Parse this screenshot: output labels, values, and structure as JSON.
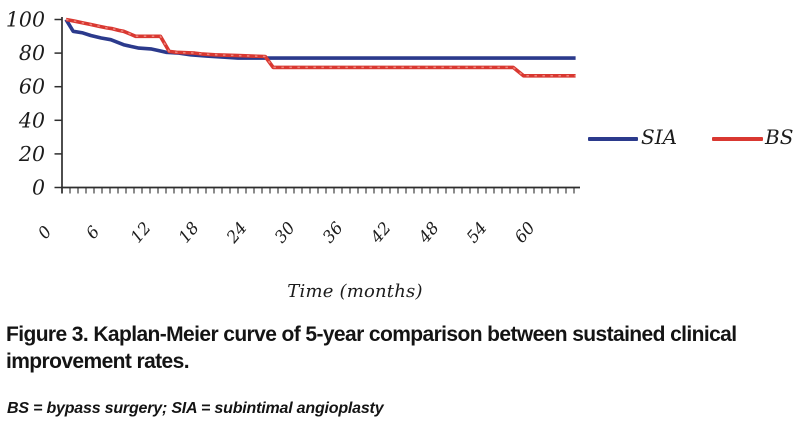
{
  "figure": {
    "caption": "Figure 3. Kaplan-Meier curve of 5-year comparison between sustained clinical improvement rates.",
    "footnote": "BS = bypass surgery; SIA = subintimal angioplasty"
  },
  "chart_data": {
    "type": "line",
    "subtype": "kaplan-meier",
    "title": "",
    "xlabel": "Time (months)",
    "ylabel": "",
    "xlim": [
      0,
      64.5
    ],
    "ylim": [
      0,
      100
    ],
    "xticks": [
      0,
      6,
      12,
      18,
      24,
      30,
      36,
      42,
      48,
      54,
      60
    ],
    "yticks": [
      0,
      20,
      40,
      60,
      80,
      100
    ],
    "grid": false,
    "legend_position": "right",
    "axis_color": "#2e2e2e",
    "series": [
      {
        "name": "SIA",
        "color": "#2b3a8c",
        "marker_color": null,
        "points": [
          [
            0.5,
            100
          ],
          [
            1.4,
            93
          ],
          [
            2.6,
            92
          ],
          [
            3.6,
            90.5
          ],
          [
            4.9,
            89
          ],
          [
            6.1,
            88
          ],
          [
            6.9,
            86.5
          ],
          [
            7.7,
            85
          ],
          [
            8.6,
            84
          ],
          [
            9.6,
            83
          ],
          [
            11.1,
            82.5
          ],
          [
            12.1,
            81.5
          ],
          [
            13,
            80.5
          ],
          [
            14.6,
            80
          ],
          [
            16.1,
            79
          ],
          [
            18.1,
            78.2
          ],
          [
            20.1,
            77.6
          ],
          [
            22,
            77
          ],
          [
            64.2,
            77
          ]
        ]
      },
      {
        "name": "BS",
        "color": "#d93831",
        "marker_color": "#ef8d84",
        "points": [
          [
            0.5,
            100
          ],
          [
            1.6,
            99
          ],
          [
            2.6,
            98
          ],
          [
            3.6,
            97
          ],
          [
            4.6,
            96
          ],
          [
            5.6,
            95
          ],
          [
            6.3,
            94.5
          ],
          [
            7.1,
            93.5
          ],
          [
            7.7,
            93
          ],
          [
            8.2,
            92
          ],
          [
            8.7,
            91
          ],
          [
            9.2,
            90
          ],
          [
            12.3,
            90
          ],
          [
            13.4,
            81
          ],
          [
            14.3,
            80.5
          ],
          [
            16.6,
            80
          ],
          [
            17.4,
            79.5
          ],
          [
            19.1,
            79
          ],
          [
            22.1,
            78.5
          ],
          [
            25.4,
            78
          ],
          [
            26.4,
            71.5
          ],
          [
            56.4,
            71.5
          ],
          [
            57.7,
            66.5
          ],
          [
            64.2,
            66.5
          ]
        ]
      }
    ]
  }
}
